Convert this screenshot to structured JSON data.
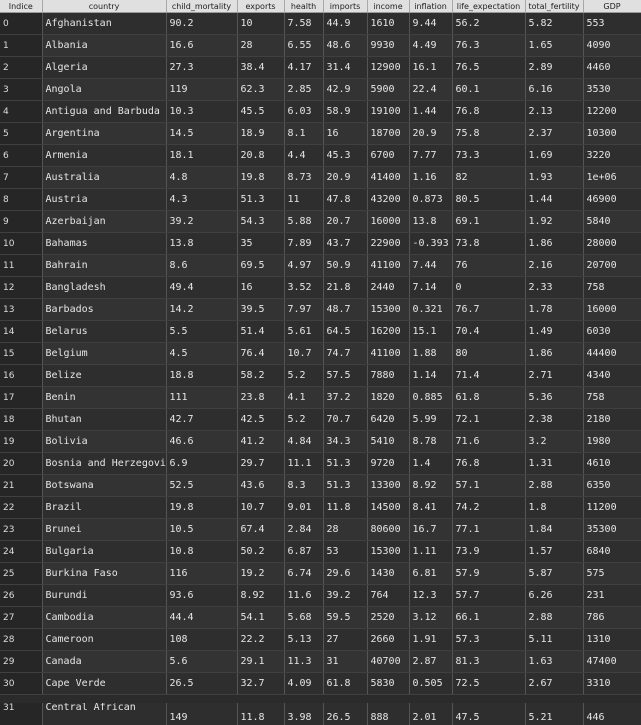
{
  "columns": [
    "Indice",
    "country",
    "child_mortality",
    "exports",
    "health",
    "imports",
    "income",
    "inflation",
    "life_expectation",
    "total_fertility",
    "GDP"
  ],
  "rows": [
    [
      "0",
      "Afghanistan",
      "90.2",
      "10",
      "7.58",
      "44.9",
      "1610",
      "9.44",
      "56.2",
      "5.82",
      "553"
    ],
    [
      "1",
      "Albania",
      "16.6",
      "28",
      "6.55",
      "48.6",
      "9930",
      "4.49",
      "76.3",
      "1.65",
      "4090"
    ],
    [
      "2",
      "Algeria",
      "27.3",
      "38.4",
      "4.17",
      "31.4",
      "12900",
      "16.1",
      "76.5",
      "2.89",
      "4460"
    ],
    [
      "3",
      "Angola",
      "119",
      "62.3",
      "2.85",
      "42.9",
      "5900",
      "22.4",
      "60.1",
      "6.16",
      "3530"
    ],
    [
      "4",
      "Antigua and Barbuda",
      "10.3",
      "45.5",
      "6.03",
      "58.9",
      "19100",
      "1.44",
      "76.8",
      "2.13",
      "12200"
    ],
    [
      "5",
      "Argentina",
      "14.5",
      "18.9",
      "8.1",
      "16",
      "18700",
      "20.9",
      "75.8",
      "2.37",
      "10300"
    ],
    [
      "6",
      "Armenia",
      "18.1",
      "20.8",
      "4.4",
      "45.3",
      "6700",
      "7.77",
      "73.3",
      "1.69",
      "3220"
    ],
    [
      "7",
      "Australia",
      "4.8",
      "19.8",
      "8.73",
      "20.9",
      "41400",
      "1.16",
      "82",
      "1.93",
      "1e+06"
    ],
    [
      "8",
      "Austria",
      "4.3",
      "51.3",
      "11",
      "47.8",
      "43200",
      "0.873",
      "80.5",
      "1.44",
      "46900"
    ],
    [
      "9",
      "Azerbaijan",
      "39.2",
      "54.3",
      "5.88",
      "20.7",
      "16000",
      "13.8",
      "69.1",
      "1.92",
      "5840"
    ],
    [
      "10",
      "Bahamas",
      "13.8",
      "35",
      "7.89",
      "43.7",
      "22900",
      "-0.393",
      "73.8",
      "1.86",
      "28000"
    ],
    [
      "11",
      "Bahrain",
      "8.6",
      "69.5",
      "4.97",
      "50.9",
      "41100",
      "7.44",
      "76",
      "2.16",
      "20700"
    ],
    [
      "12",
      "Bangladesh",
      "49.4",
      "16",
      "3.52",
      "21.8",
      "2440",
      "7.14",
      "0",
      "2.33",
      "758"
    ],
    [
      "13",
      "Barbados",
      "14.2",
      "39.5",
      "7.97",
      "48.7",
      "15300",
      "0.321",
      "76.7",
      "1.78",
      "16000"
    ],
    [
      "14",
      "Belarus",
      "5.5",
      "51.4",
      "5.61",
      "64.5",
      "16200",
      "15.1",
      "70.4",
      "1.49",
      "6030"
    ],
    [
      "15",
      "Belgium",
      "4.5",
      "76.4",
      "10.7",
      "74.7",
      "41100",
      "1.88",
      "80",
      "1.86",
      "44400"
    ],
    [
      "16",
      "Belize",
      "18.8",
      "58.2",
      "5.2",
      "57.5",
      "7880",
      "1.14",
      "71.4",
      "2.71",
      "4340"
    ],
    [
      "17",
      "Benin",
      "111",
      "23.8",
      "4.1",
      "37.2",
      "1820",
      "0.885",
      "61.8",
      "5.36",
      "758"
    ],
    [
      "18",
      "Bhutan",
      "42.7",
      "42.5",
      "5.2",
      "70.7",
      "6420",
      "5.99",
      "72.1",
      "2.38",
      "2180"
    ],
    [
      "19",
      "Bolivia",
      "46.6",
      "41.2",
      "4.84",
      "34.3",
      "5410",
      "8.78",
      "71.6",
      "3.2",
      "1980"
    ],
    [
      "20",
      "Bosnia and Herzegovina",
      "6.9",
      "29.7",
      "11.1",
      "51.3",
      "9720",
      "1.4",
      "76.8",
      "1.31",
      "4610"
    ],
    [
      "21",
      "Botswana",
      "52.5",
      "43.6",
      "8.3",
      "51.3",
      "13300",
      "8.92",
      "57.1",
      "2.88",
      "6350"
    ],
    [
      "22",
      "Brazil",
      "19.8",
      "10.7",
      "9.01",
      "11.8",
      "14500",
      "8.41",
      "74.2",
      "1.8",
      "11200"
    ],
    [
      "23",
      "Brunei",
      "10.5",
      "67.4",
      "2.84",
      "28",
      "80600",
      "16.7",
      "77.1",
      "1.84",
      "35300"
    ],
    [
      "24",
      "Bulgaria",
      "10.8",
      "50.2",
      "6.87",
      "53",
      "15300",
      "1.11",
      "73.9",
      "1.57",
      "6840"
    ],
    [
      "25",
      "Burkina Faso",
      "116",
      "19.2",
      "6.74",
      "29.6",
      "1430",
      "6.81",
      "57.9",
      "5.87",
      "575"
    ],
    [
      "26",
      "Burundi",
      "93.6",
      "8.92",
      "11.6",
      "39.2",
      "764",
      "12.3",
      "57.7",
      "6.26",
      "231"
    ],
    [
      "27",
      "Cambodia",
      "44.4",
      "54.1",
      "5.68",
      "59.5",
      "2520",
      "3.12",
      "66.1",
      "2.88",
      "786"
    ],
    [
      "28",
      "Cameroon",
      "108",
      "22.2",
      "5.13",
      "27",
      "2660",
      "1.91",
      "57.3",
      "5.11",
      "1310"
    ],
    [
      "29",
      "Canada",
      "5.6",
      "29.1",
      "11.3",
      "31",
      "40700",
      "2.87",
      "81.3",
      "1.63",
      "47400"
    ],
    [
      "30",
      "Cape Verde",
      "26.5",
      "32.7",
      "4.09",
      "61.8",
      "5830",
      "0.505",
      "72.5",
      "2.67",
      "3310"
    ]
  ],
  "partial_row": [
    "31",
    "Central African",
    "149",
    "11.8",
    "3.98",
    "26.5",
    "888",
    "2.01",
    "47.5",
    "5.21",
    "446"
  ]
}
